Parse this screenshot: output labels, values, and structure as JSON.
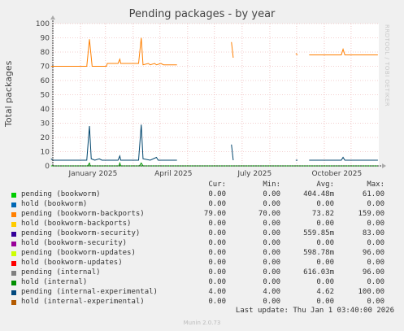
{
  "title": "Pending packages - by year",
  "watermark": "RRDTOOL / TOBI OETIKER",
  "chart_data": {
    "type": "line",
    "ylabel": "Total packages",
    "ylim": [
      0,
      100
    ],
    "yticks": [
      0,
      10,
      20,
      30,
      40,
      50,
      60,
      70,
      80,
      90,
      100
    ],
    "xlim": [
      "2025-01-01",
      "2026-01-01"
    ],
    "xtick_labels": [
      {
        "label": "January 2025",
        "date": "2025-01-01"
      },
      {
        "label": "April 2025",
        "date": "2025-04-01"
      },
      {
        "label": "July 2025",
        "date": "2025-07-01"
      },
      {
        "label": "October 2025",
        "date": "2025-10-01"
      }
    ],
    "grid": true,
    "series": [
      {
        "name": "pending (bookworm-backports)",
        "color": "#ff7f00",
        "segments": [
          [
            [
              "2024-12-30",
              70
            ],
            [
              "2025-02-08",
              70
            ],
            [
              "2025-02-11",
              89
            ],
            [
              "2025-02-14",
              70
            ],
            [
              "2025-03-02",
              70
            ],
            [
              "2025-03-03",
              72
            ],
            [
              "2025-03-15",
              72
            ],
            [
              "2025-03-17",
              75
            ],
            [
              "2025-03-18",
              72
            ],
            [
              "2025-04-07",
              72
            ],
            [
              "2025-04-10",
              90
            ],
            [
              "2025-04-12",
              71
            ],
            [
              "2025-04-18",
              72
            ],
            [
              "2025-04-20",
              71
            ],
            [
              "2025-04-25",
              72
            ],
            [
              "2025-04-27",
              71
            ],
            [
              "2025-05-02",
              72
            ],
            [
              "2025-05-05",
              71
            ],
            [
              "2025-05-20",
              71
            ]
          ],
          [
            [
              "2025-07-20",
              87
            ],
            [
              "2025-07-22",
              76
            ]
          ],
          [
            [
              "2025-09-30",
              79
            ],
            [
              "2025-10-02",
              78
            ]
          ],
          [
            [
              "2025-10-15",
              78
            ],
            [
              "2025-11-20",
              78
            ],
            [
              "2025-11-22",
              82
            ],
            [
              "2025-11-24",
              78
            ],
            [
              "2025-12-31",
              78
            ]
          ]
        ]
      },
      {
        "name": "pending (internal-experimental)",
        "color": "#00456d",
        "segments": [
          [
            [
              "2024-12-30",
              5
            ],
            [
              "2025-01-01",
              4
            ],
            [
              "2025-02-08",
              4
            ],
            [
              "2025-02-11",
              28
            ],
            [
              "2025-02-13",
              5
            ],
            [
              "2025-02-17",
              4
            ],
            [
              "2025-02-22",
              5
            ],
            [
              "2025-02-25",
              4
            ],
            [
              "2025-03-15",
              4
            ],
            [
              "2025-03-17",
              7
            ],
            [
              "2025-03-18",
              4
            ],
            [
              "2025-04-07",
              4
            ],
            [
              "2025-04-10",
              29
            ],
            [
              "2025-04-12",
              5
            ],
            [
              "2025-04-20",
              4
            ],
            [
              "2025-04-27",
              6
            ],
            [
              "2025-04-29",
              4
            ],
            [
              "2025-05-20",
              4
            ]
          ],
          [
            [
              "2025-07-20",
              15
            ],
            [
              "2025-07-22",
              4
            ]
          ],
          [
            [
              "2025-09-30",
              4
            ],
            [
              "2025-10-02",
              4
            ]
          ],
          [
            [
              "2025-10-15",
              4
            ],
            [
              "2025-11-20",
              4
            ],
            [
              "2025-11-22",
              6
            ],
            [
              "2025-11-24",
              4
            ],
            [
              "2025-12-31",
              4
            ]
          ]
        ]
      },
      {
        "name": "pending (internal)",
        "color": "#008f00",
        "segments": [
          [
            [
              "2025-01-01",
              0
            ],
            [
              "2025-02-09",
              0
            ],
            [
              "2025-02-11",
              2
            ],
            [
              "2025-02-12",
              0
            ],
            [
              "2025-03-16",
              0
            ],
            [
              "2025-03-17",
              2
            ],
            [
              "2025-03-18",
              0
            ],
            [
              "2025-04-08",
              0
            ],
            [
              "2025-04-10",
              2
            ],
            [
              "2025-04-12",
              0
            ],
            [
              "2025-05-20",
              0
            ]
          ],
          [
            [
              "2025-10-15",
              0
            ],
            [
              "2025-12-31",
              0
            ]
          ]
        ]
      },
      {
        "name": "pending (bookworm)",
        "color": "#00cc00",
        "segments": [
          [
            [
              "2024-12-30",
              0
            ],
            [
              "2025-12-31",
              0
            ]
          ]
        ]
      }
    ]
  },
  "legend": {
    "headers": {
      "cur": "Cur:",
      "min": "Min:",
      "avg": "Avg:",
      "max": "Max:"
    },
    "rows": [
      {
        "name": "pending (bookworm)",
        "color": "#00cc00",
        "cur": "0.00",
        "min": "0.00",
        "avg": "404.48m",
        "max": "61.00"
      },
      {
        "name": "hold (bookworm)",
        "color": "#0066b3",
        "cur": "0.00",
        "min": "0.00",
        "avg": "0.00",
        "max": "0.00"
      },
      {
        "name": "pending (bookworm-backports)",
        "color": "#ff8000",
        "cur": "79.00",
        "min": "70.00",
        "avg": "73.82",
        "max": "159.00"
      },
      {
        "name": "hold (bookworm-backports)",
        "color": "#ffcc00",
        "cur": "0.00",
        "min": "0.00",
        "avg": "0.00",
        "max": "0.00"
      },
      {
        "name": "pending (bookworm-security)",
        "color": "#330099",
        "cur": "0.00",
        "min": "0.00",
        "avg": "559.85m",
        "max": "83.00"
      },
      {
        "name": "hold (bookworm-security)",
        "color": "#990099",
        "cur": "0.00",
        "min": "0.00",
        "avg": "0.00",
        "max": "0.00"
      },
      {
        "name": "pending (bookworm-updates)",
        "color": "#ccff00",
        "cur": "0.00",
        "min": "0.00",
        "avg": "598.78m",
        "max": "96.00"
      },
      {
        "name": "hold (bookworm-updates)",
        "color": "#ff0000",
        "cur": "0.00",
        "min": "0.00",
        "avg": "0.00",
        "max": "0.00"
      },
      {
        "name": "pending (internal)",
        "color": "#808080",
        "cur": "0.00",
        "min": "0.00",
        "avg": "616.03m",
        "max": "96.00"
      },
      {
        "name": "hold (internal)",
        "color": "#008f00",
        "cur": "0.00",
        "min": "0.00",
        "avg": "0.00",
        "max": "0.00"
      },
      {
        "name": "pending (internal-experimental)",
        "color": "#00487d",
        "cur": "4.00",
        "min": "4.00",
        "avg": "4.62",
        "max": "100.00"
      },
      {
        "name": "hold (internal-experimental)",
        "color": "#b35a00",
        "cur": "0.00",
        "min": "0.00",
        "avg": "0.00",
        "max": "0.00"
      }
    ]
  },
  "last_update": "Last update: Thu Jan  1 03:40:00 2026",
  "version": "Munin 2.0.73"
}
